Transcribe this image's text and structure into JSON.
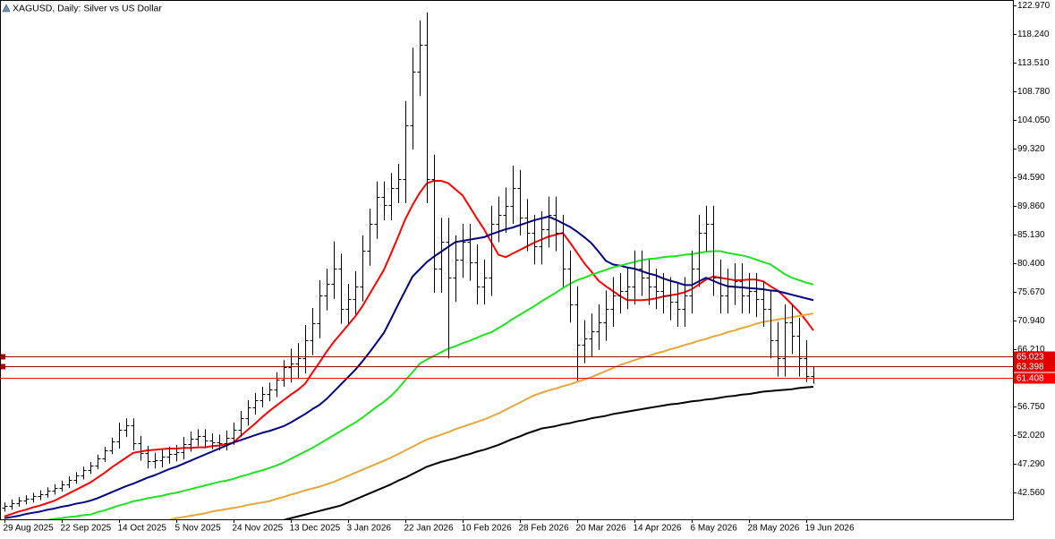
{
  "chart_data": {
    "type": "ohlc",
    "title": "XAGUSD, Daily: Silver vs US Dollar",
    "categories": [
      "29 Aug 2025",
      null,
      null,
      null,
      null,
      null,
      null,
      null,
      "22 Sep 2025",
      null,
      null,
      null,
      null,
      null,
      null,
      null,
      "14 Oct 2025",
      null,
      null,
      null,
      null,
      null,
      null,
      null,
      "5 Nov 2025",
      null,
      null,
      null,
      null,
      null,
      null,
      null,
      "24 Nov 2025",
      null,
      null,
      null,
      null,
      null,
      null,
      null,
      "13 Dec 2025",
      null,
      null,
      null,
      null,
      null,
      null,
      null,
      "3 Jan 2026",
      null,
      null,
      null,
      null,
      null,
      null,
      null,
      "22 Jan 2026",
      null,
      null,
      null,
      null,
      null,
      null,
      null,
      "10 Feb 2026",
      null,
      null,
      null,
      null,
      null,
      null,
      null,
      "28 Feb 2026",
      null,
      null,
      null,
      null,
      null,
      null,
      null,
      "20 Mar 2026",
      null,
      null,
      null,
      null,
      null,
      null,
      null,
      "14 Apr 2026",
      null,
      null,
      null,
      null,
      null,
      null,
      null,
      "6 May 2026",
      null,
      null,
      null,
      null,
      null,
      null,
      null,
      "28 May 2026",
      null,
      null,
      null,
      null,
      null,
      null,
      null,
      "19 Jun 2026",
      null
    ],
    "open": [
      40.0,
      40.3,
      40.8,
      41.2,
      41.5,
      41.9,
      42.3,
      42.8,
      43.3,
      43.9,
      44.6,
      45.3,
      46.2,
      47.0,
      48.2,
      49.5,
      51.0,
      52.9,
      53.6,
      50.7,
      49.0,
      47.7,
      47.9,
      48.5,
      48.9,
      49.2,
      50.5,
      51.4,
      51.8,
      51.1,
      50.9,
      50.7,
      51.6,
      52.9,
      54.8,
      56.6,
      57.8,
      58.8,
      59.5,
      61.2,
      63.2,
      63.8,
      64.7,
      67.7,
      70.5,
      75.1,
      77.0,
      79.5,
      72.9,
      74.5,
      76.6,
      82.5,
      86.9,
      91.4,
      90.0,
      92.8,
      94.3,
      103.2,
      112.0,
      116.5,
      94.3,
      79.5,
      83.9,
      78.0,
      81.0,
      83.9,
      80.5,
      76.6,
      78.0,
      86.9,
      88.4,
      89.9,
      92.8,
      88.0,
      85.4,
      83.2,
      86.0,
      88.4,
      85.4,
      79.5,
      73.6,
      66.9,
      68.0,
      69.1,
      70.6,
      72.9,
      75.1,
      75.8,
      76.6,
      79.5,
      78.0,
      76.5,
      75.8,
      75.1,
      74.0,
      72.9,
      75.1,
      79.5,
      85.4,
      86.9,
      78.0,
      75.1,
      76.5,
      77.4,
      75.1,
      75.8,
      74.5,
      72.9,
      67.7,
      64.7,
      70.6,
      68.4,
      64.7,
      61.8
    ],
    "high": [
      40.9,
      41.4,
      41.8,
      42.1,
      42.5,
      42.9,
      43.4,
      43.9,
      44.5,
      45.2,
      45.9,
      46.8,
      47.6,
      48.8,
      50.1,
      51.6,
      54.1,
      54.8,
      54.8,
      51.9,
      50.2,
      49.1,
      49.7,
      50.1,
      50.4,
      51.7,
      52.6,
      53.0,
      53.0,
      52.3,
      52.1,
      52.8,
      54.1,
      56.0,
      57.8,
      59.0,
      60.0,
      60.7,
      62.4,
      64.4,
      66.3,
      67.2,
      70.2,
      73.0,
      77.6,
      79.5,
      84.0,
      82.0,
      77.0,
      79.1,
      85.0,
      89.4,
      93.9,
      93.9,
      95.3,
      96.8,
      107.2,
      116.0,
      120.5,
      121.8,
      98.3,
      87.9,
      87.9,
      85.0,
      86.9,
      86.9,
      83.5,
      81.0,
      89.9,
      91.4,
      92.9,
      96.5,
      95.8,
      91.0,
      88.4,
      89.0,
      91.4,
      91.4,
      88.4,
      82.5,
      76.6,
      71.0,
      72.1,
      73.6,
      75.9,
      78.1,
      78.8,
      79.6,
      82.5,
      82.5,
      81.0,
      79.5,
      78.8,
      78.1,
      77.0,
      78.1,
      82.5,
      88.4,
      89.9,
      89.9,
      81.0,
      79.5,
      80.4,
      80.4,
      78.8,
      78.8,
      77.5,
      75.9,
      70.7,
      73.6,
      73.6,
      71.4,
      67.7,
      63.4
    ],
    "low": [
      39.4,
      39.7,
      40.2,
      40.6,
      40.9,
      41.3,
      41.7,
      42.2,
      42.7,
      43.3,
      44.0,
      44.7,
      45.6,
      46.4,
      47.6,
      48.9,
      49.8,
      51.7,
      49.5,
      47.8,
      46.5,
      46.5,
      46.7,
      47.3,
      47.7,
      48.0,
      49.3,
      50.2,
      49.9,
      49.7,
      49.5,
      49.5,
      50.4,
      51.7,
      53.6,
      55.4,
      56.6,
      57.6,
      58.3,
      60.0,
      60.7,
      61.3,
      62.2,
      65.2,
      68.0,
      72.6,
      74.5,
      70.4,
      70.4,
      72.0,
      74.1,
      80.0,
      84.4,
      87.5,
      87.5,
      90.3,
      90.3,
      99.2,
      108.0,
      90.3,
      75.5,
      75.5,
      64.7,
      74.0,
      78.0,
      77.5,
      73.6,
      73.6,
      75.0,
      83.9,
      85.4,
      86.9,
      85.0,
      82.4,
      80.2,
      80.2,
      83.0,
      82.4,
      76.5,
      70.6,
      61.0,
      63.9,
      65.0,
      66.1,
      67.6,
      69.9,
      72.1,
      72.8,
      73.6,
      75.0,
      73.5,
      72.8,
      72.1,
      71.0,
      69.9,
      69.9,
      72.1,
      76.5,
      82.4,
      75.0,
      72.1,
      72.1,
      73.5,
      72.1,
      72.1,
      71.5,
      69.9,
      64.7,
      61.7,
      61.7,
      65.4,
      61.7,
      60.8,
      60.5
    ],
    "close": [
      40.3,
      40.8,
      41.2,
      41.5,
      41.9,
      42.3,
      42.8,
      43.3,
      43.9,
      44.6,
      45.3,
      46.2,
      47.0,
      48.2,
      49.5,
      51.0,
      52.9,
      53.6,
      50.7,
      49.0,
      47.7,
      47.9,
      48.5,
      48.9,
      49.2,
      50.5,
      51.4,
      51.8,
      51.1,
      50.9,
      50.7,
      51.6,
      52.9,
      54.8,
      56.6,
      57.8,
      58.8,
      59.5,
      61.2,
      63.2,
      63.8,
      64.7,
      67.7,
      70.5,
      75.1,
      77.0,
      79.5,
      72.9,
      74.5,
      76.6,
      82.5,
      86.9,
      91.4,
      90.0,
      92.8,
      94.3,
      103.2,
      112.0,
      116.5,
      94.3,
      79.5,
      83.9,
      78.0,
      81.0,
      83.9,
      80.5,
      76.6,
      78.0,
      86.9,
      88.4,
      89.9,
      92.8,
      88.0,
      85.4,
      83.2,
      86.0,
      88.4,
      85.4,
      79.5,
      73.6,
      66.9,
      68.0,
      69.1,
      70.6,
      72.9,
      75.1,
      75.8,
      76.6,
      79.5,
      78.0,
      76.5,
      75.8,
      75.1,
      74.0,
      72.9,
      75.1,
      79.5,
      85.4,
      86.9,
      78.0,
      75.1,
      76.5,
      77.4,
      75.1,
      75.8,
      74.5,
      72.9,
      67.7,
      64.7,
      70.6,
      68.4,
      64.7,
      61.8,
      61.41
    ],
    "bar_color": "#000000",
    "series": [
      {
        "color": "#ff0000",
        "values": [
          38.6,
          39.0,
          39.4,
          39.7,
          40.1,
          40.4,
          40.8,
          41.2,
          41.8,
          42.4,
          43.0,
          43.6,
          44.2,
          45.0,
          45.8,
          46.7,
          47.5,
          48.3,
          49.1,
          49.3,
          49.5,
          49.6,
          49.7,
          49.8,
          49.8,
          49.9,
          49.9,
          50.0,
          50.0,
          50.2,
          50.3,
          50.5,
          50.8,
          51.9,
          52.9,
          53.9,
          55.0,
          56.0,
          56.9,
          57.8,
          58.7,
          59.5,
          60.5,
          62.3,
          64.0,
          65.8,
          67.4,
          68.8,
          70.2,
          71.6,
          73.3,
          75.3,
          77.3,
          79.3,
          82.0,
          84.8,
          87.7,
          90.0,
          92.0,
          93.6,
          94.0,
          94.0,
          93.6,
          92.6,
          91.6,
          89.7,
          87.8,
          86.0,
          83.9,
          81.8,
          81.4,
          82.0,
          82.6,
          83.2,
          83.8,
          84.3,
          84.8,
          85.1,
          85.4,
          83.8,
          82.1,
          80.4,
          79.0,
          77.5,
          76.6,
          75.8,
          75.0,
          74.3,
          74.3,
          74.3,
          74.4,
          74.6,
          74.9,
          75.1,
          75.3,
          75.6,
          76.1,
          76.9,
          77.7,
          78.2,
          78.0,
          77.8,
          77.6,
          77.6,
          77.7,
          77.7,
          77.4,
          76.6,
          75.9,
          74.8,
          73.6,
          72.4,
          70.9,
          69.3
        ]
      },
      {
        "color": "#000080",
        "values": [
          38.3,
          38.5,
          38.7,
          39.0,
          39.2,
          39.4,
          39.7,
          39.9,
          40.2,
          40.4,
          40.7,
          40.9,
          41.2,
          41.6,
          42.1,
          42.6,
          43.1,
          43.6,
          44.0,
          44.5,
          45.0,
          45.4,
          45.9,
          46.4,
          46.8,
          47.3,
          47.8,
          48.3,
          48.8,
          49.3,
          49.8,
          50.3,
          50.8,
          51.2,
          51.6,
          52.0,
          52.4,
          52.7,
          53.1,
          53.5,
          54.1,
          54.8,
          55.5,
          56.3,
          57.0,
          58.0,
          59.2,
          60.4,
          61.6,
          62.8,
          64.2,
          65.7,
          67.3,
          68.9,
          71.2,
          73.6,
          75.9,
          78.2,
          79.4,
          80.6,
          81.5,
          82.3,
          83.1,
          83.9,
          84.1,
          84.3,
          84.5,
          84.7,
          85.2,
          85.6,
          86.0,
          86.3,
          86.7,
          87.1,
          87.5,
          87.8,
          88.1,
          87.6,
          87.0,
          86.4,
          85.6,
          84.7,
          83.7,
          82.3,
          80.8,
          80.2,
          80.0,
          79.7,
          79.5,
          79.1,
          78.7,
          78.4,
          77.9,
          77.5,
          77.2,
          76.8,
          76.8,
          77.4,
          78.0,
          77.5,
          77.0,
          76.6,
          76.5,
          76.4,
          76.3,
          76.2,
          76.1,
          75.9,
          75.8,
          75.5,
          75.2,
          74.9,
          74.6,
          74.3
        ]
      },
      {
        "color": "#22e022",
        "values": [
          37.2,
          37.3,
          37.5,
          37.6,
          37.8,
          37.9,
          38.0,
          38.2,
          38.3,
          38.5,
          38.6,
          38.8,
          38.9,
          39.3,
          39.6,
          40.0,
          40.4,
          40.7,
          41.1,
          41.3,
          41.6,
          41.8,
          42.0,
          42.3,
          42.5,
          42.8,
          43.1,
          43.4,
          43.7,
          44.0,
          44.3,
          44.5,
          44.8,
          45.2,
          45.5,
          45.9,
          46.2,
          46.6,
          47.0,
          47.5,
          48.1,
          48.7,
          49.3,
          49.9,
          50.6,
          51.3,
          52.0,
          52.7,
          53.4,
          54.1,
          54.9,
          55.8,
          56.7,
          57.5,
          58.5,
          59.7,
          61.1,
          62.4,
          63.8,
          64.5,
          65.1,
          65.7,
          66.3,
          66.7,
          67.2,
          67.6,
          68.1,
          68.6,
          69.0,
          69.7,
          70.4,
          71.2,
          71.9,
          72.6,
          73.3,
          74.1,
          74.8,
          75.5,
          76.3,
          77.0,
          77.6,
          78.0,
          78.5,
          78.9,
          79.3,
          79.7,
          80.0,
          80.3,
          80.6,
          80.9,
          81.1,
          81.2,
          81.4,
          81.5,
          81.6,
          81.8,
          81.9,
          82.1,
          82.3,
          82.4,
          82.4,
          82.1,
          81.9,
          81.7,
          81.4,
          81.0,
          80.6,
          80.2,
          79.4,
          78.6,
          78.0,
          77.6,
          77.2,
          76.9
        ]
      },
      {
        "color": "#e3a73a",
        "values": [
          null,
          null,
          null,
          null,
          null,
          null,
          null,
          null,
          null,
          null,
          null,
          null,
          null,
          null,
          null,
          null,
          null,
          null,
          null,
          null,
          null,
          null,
          37.8,
          38.0,
          38.3,
          38.5,
          38.7,
          38.9,
          39.1,
          39.4,
          39.6,
          39.8,
          40.0,
          40.2,
          40.5,
          40.7,
          40.9,
          41.1,
          41.5,
          41.8,
          42.2,
          42.5,
          42.9,
          43.2,
          43.5,
          43.9,
          44.3,
          44.8,
          45.3,
          45.8,
          46.3,
          46.8,
          47.3,
          47.8,
          48.3,
          48.9,
          49.5,
          50.1,
          50.7,
          51.3,
          51.7,
          52.1,
          52.5,
          53.0,
          53.4,
          53.8,
          54.2,
          54.6,
          55.1,
          55.6,
          56.2,
          56.8,
          57.4,
          58.0,
          58.6,
          59.0,
          59.4,
          59.7,
          60.1,
          60.4,
          60.8,
          61.2,
          61.6,
          62.1,
          62.6,
          63.1,
          63.6,
          64.0,
          64.4,
          64.8,
          65.1,
          65.5,
          65.8,
          66.2,
          66.5,
          66.9,
          67.2,
          67.6,
          67.9,
          68.3,
          68.6,
          69.0,
          69.3,
          69.7,
          70.0,
          70.4,
          70.7,
          70.9,
          71.1,
          71.3,
          71.5,
          71.7,
          71.9,
          72.1
        ]
      },
      {
        "color": "#000000",
        "values": [
          null,
          null,
          null,
          null,
          null,
          null,
          null,
          null,
          null,
          null,
          null,
          null,
          null,
          null,
          null,
          null,
          null,
          null,
          null,
          null,
          null,
          null,
          null,
          null,
          null,
          null,
          null,
          null,
          null,
          null,
          null,
          null,
          null,
          null,
          null,
          null,
          null,
          null,
          null,
          38.0,
          38.3,
          38.6,
          38.9,
          39.2,
          39.5,
          39.8,
          40.1,
          40.4,
          40.9,
          41.4,
          41.9,
          42.4,
          42.9,
          43.4,
          43.9,
          44.5,
          45.0,
          45.6,
          46.2,
          46.8,
          47.2,
          47.6,
          47.9,
          48.2,
          48.6,
          48.9,
          49.3,
          49.6,
          50.0,
          50.4,
          50.9,
          51.4,
          51.8,
          52.3,
          52.7,
          53.1,
          53.3,
          53.5,
          53.8,
          54.0,
          54.3,
          54.5,
          54.8,
          55.0,
          55.2,
          55.5,
          55.7,
          55.9,
          56.1,
          56.3,
          56.5,
          56.7,
          56.9,
          57.1,
          57.2,
          57.4,
          57.6,
          57.7,
          57.9,
          58.0,
          58.2,
          58.4,
          58.5,
          58.7,
          58.8,
          59.0,
          59.2,
          59.3,
          59.4,
          59.5,
          59.6,
          59.8,
          59.9,
          60.0
        ]
      }
    ],
    "price_lines": [
      {
        "value": 65.023,
        "color": "#a00000",
        "label_color": "#e00000"
      },
      {
        "value": 63.398,
        "color": "#a00000",
        "label_color": "#e00000"
      },
      {
        "value": 61.408,
        "color": "#ff0000",
        "label_color": "#ff0000"
      }
    ],
    "ylim": [
      38.12,
      123.86
    ],
    "yticks": [
      {
        "value": 122.97,
        "label": "122.970"
      },
      {
        "value": 118.24,
        "label": "118.240"
      },
      {
        "value": 113.51,
        "label": "113.510"
      },
      {
        "value": 108.78,
        "label": "108.780"
      },
      {
        "value": 104.05,
        "label": "104.050"
      },
      {
        "value": 99.32,
        "label": "99.320"
      },
      {
        "value": 94.59,
        "label": "94.590"
      },
      {
        "value": 89.86,
        "label": "89.860"
      },
      {
        "value": 85.13,
        "label": "85.130"
      },
      {
        "value": 80.4,
        "label": "80.400"
      },
      {
        "value": 75.67,
        "label": "75.670"
      },
      {
        "value": 70.94,
        "label": "70.940"
      },
      {
        "value": 66.21,
        "label": "66.210"
      },
      {
        "value": 56.75,
        "label": "56.750"
      },
      {
        "value": 52.02,
        "label": "52.020"
      },
      {
        "value": 47.29,
        "label": "47.290"
      },
      {
        "value": 42.56,
        "label": "42.560"
      }
    ],
    "grid": false
  }
}
